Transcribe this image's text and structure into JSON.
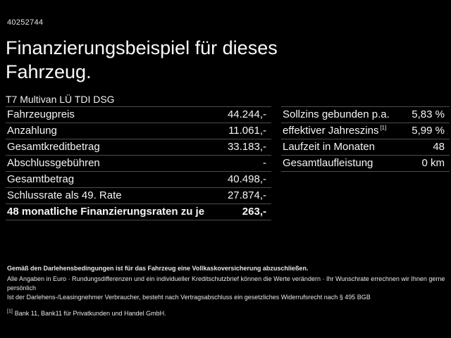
{
  "vehicle_id": "40252744",
  "title": "Finanzierungsbeispiel für dieses Fahrzeug.",
  "vehicle_model": "T7 Multivan LÜ TDI DSG",
  "financing_table": {
    "rows": [
      {
        "label": "Fahrzeugpreis",
        "footnote": "",
        "value": "44.244,-",
        "bold": false
      },
      {
        "label": "Anzahlung",
        "footnote": "",
        "value": "11.061,-",
        "bold": false
      },
      {
        "label": "Gesamtkreditbetrag",
        "footnote": "",
        "value": "33.183,-",
        "bold": false
      },
      {
        "label": "Abschlussgebühren",
        "footnote": "",
        "value": "-",
        "bold": false
      },
      {
        "label": "Gesamtbetrag",
        "footnote": "",
        "value": "40.498,-",
        "bold": false
      },
      {
        "label": "Schlussrate als 49. Rate",
        "footnote": "",
        "value": "27.874,-",
        "bold": false
      },
      {
        "label": "48 monatliche Finanzierungsraten zu je",
        "footnote": "",
        "value": "263,-",
        "bold": true
      }
    ]
  },
  "conditions_table": {
    "rows": [
      {
        "label": "Sollzins gebunden p.a.",
        "footnote": "",
        "value": "5,83 %",
        "bold": false
      },
      {
        "label": "effektiver Jahreszins",
        "footnote": "[1]",
        "value": "5,99 %",
        "bold": false
      },
      {
        "label": "Laufzeit in Monaten",
        "footnote": "",
        "value": "48",
        "bold": false
      },
      {
        "label": "Gesamtlaufleistung",
        "footnote": "",
        "value": "0 km",
        "bold": false
      }
    ]
  },
  "fine_print": {
    "insurance_note": "Gemäß den Darlehensbedingungen ist für das Fahrzeug eine Vollkaskoversicherung abzuschließen.",
    "disclaimer_1": "Alle Angaben in Euro · Rundungsdifferenzen und ein individueller Kreditschutzbrief können die Werte verändern · Ihr Wunschrate errechnen wir Ihnen gerne persönlich",
    "disclaimer_2": "Ist der Darlehens-/Leasingnehmer Verbraucher, besteht nach Vertragsabschluss ein gesetzliches Widerrufsrecht nach § 495 BGB",
    "footnote_marker": "[1]",
    "footnote_text": "Bank 11, Bank11 für Privatkunden und Handel GmbH."
  },
  "colors": {
    "background": "#000000",
    "text": "#f5f5f5",
    "divider": "#4d4d4d"
  }
}
